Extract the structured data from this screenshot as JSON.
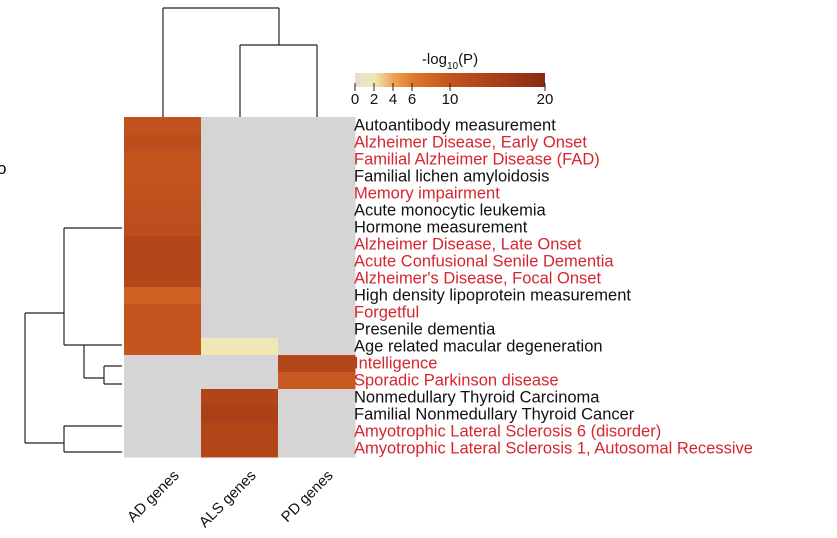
{
  "chart_data": {
    "type": "heatmap",
    "legend": {
      "title_prefix": "-log",
      "title_subscript": "10",
      "title_suffix": "(P)",
      "ticks": [
        0,
        2,
        4,
        6,
        10,
        20
      ],
      "range": [
        0,
        20
      ],
      "colors": [
        "#e3e0cc",
        "#f1e7b4",
        "#eda45a",
        "#e07a2c",
        "#c4541e",
        "#8a2a12"
      ]
    },
    "columns": [
      "AD genes",
      "ALS genes",
      "PD genes"
    ],
    "rows": [
      {
        "label": "Autoantibody measurement",
        "highlight": false,
        "values": [
          10.5,
          null,
          null
        ]
      },
      {
        "label": "Alzheimer Disease, Early Onset",
        "highlight": true,
        "values": [
          11.5,
          null,
          null
        ]
      },
      {
        "label": "Familial Alzheimer Disease (FAD)",
        "highlight": true,
        "values": [
          10,
          null,
          null
        ]
      },
      {
        "label": "Familial lichen amyloidosis",
        "highlight": false,
        "values": [
          10,
          null,
          null
        ]
      },
      {
        "label": "Memory impairment",
        "highlight": true,
        "values": [
          10.5,
          null,
          null
        ]
      },
      {
        "label": "Acute monocytic leukemia",
        "highlight": false,
        "values": [
          11,
          null,
          null
        ]
      },
      {
        "label": "Hormone measurement",
        "highlight": false,
        "values": [
          11.5,
          null,
          null
        ]
      },
      {
        "label": "Alzheimer Disease, Late Onset",
        "highlight": true,
        "values": [
          13,
          null,
          null
        ]
      },
      {
        "label": "Acute Confusional Senile Dementia",
        "highlight": true,
        "values": [
          13,
          null,
          null
        ]
      },
      {
        "label": "Alzheimer's Disease, Focal Onset",
        "highlight": true,
        "values": [
          13,
          null,
          null
        ]
      },
      {
        "label": "High density lipoprotein measurement",
        "highlight": false,
        "values": [
          8.5,
          null,
          null
        ]
      },
      {
        "label": "Forgetful",
        "highlight": true,
        "values": [
          10,
          null,
          null
        ]
      },
      {
        "label": "Presenile dementia",
        "highlight": false,
        "values": [
          10,
          null,
          null
        ]
      },
      {
        "label": "Age related macular degeneration",
        "highlight": false,
        "values": [
          10,
          2,
          null
        ]
      },
      {
        "label": "Intelligence",
        "highlight": true,
        "values": [
          null,
          null,
          13
        ]
      },
      {
        "label": "Sporadic Parkinson disease",
        "highlight": true,
        "values": [
          null,
          null,
          9.5
        ]
      },
      {
        "label": "Nonmedullary Thyroid Carcinoma",
        "highlight": false,
        "values": [
          null,
          13.5,
          null
        ]
      },
      {
        "label": "Familial Nonmedullary Thyroid Cancer",
        "highlight": false,
        "values": [
          null,
          14.5,
          null
        ]
      },
      {
        "label": "Amyotrophic Lateral Sclerosis 6 (disorder)",
        "highlight": true,
        "values": [
          null,
          13,
          null
        ]
      },
      {
        "label": "Amyotrophic Lateral Sclerosis 1, Autosomal Recessive",
        "highlight": true,
        "values": [
          null,
          13,
          null
        ]
      }
    ],
    "missing_color": "#d5d5d5",
    "highlight_color": "#d7252e",
    "text_color": "#111111",
    "cut_off_label": "o"
  }
}
